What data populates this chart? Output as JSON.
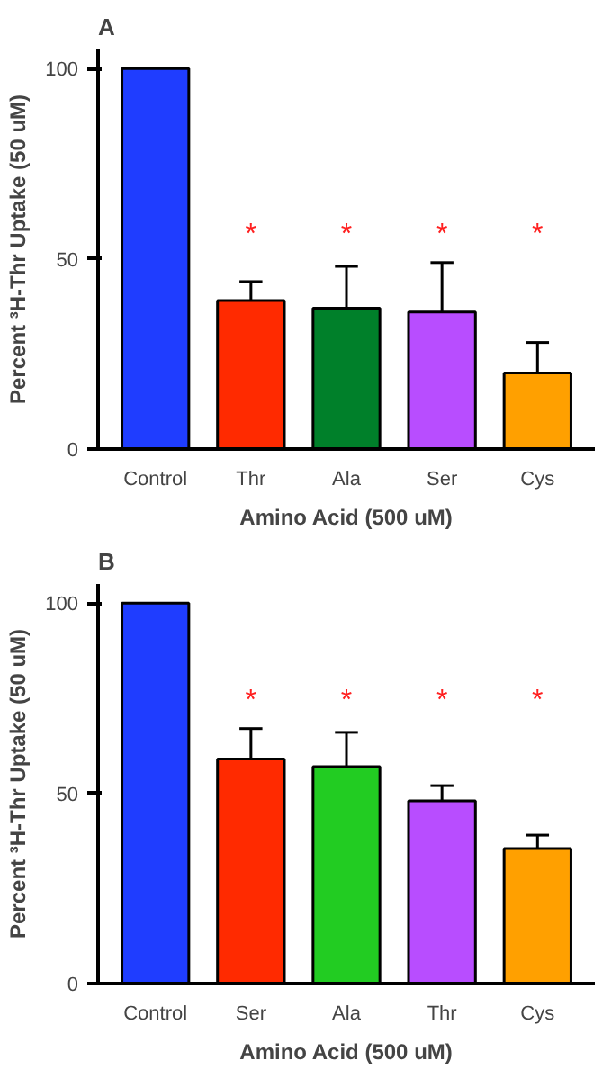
{
  "chart_data": [
    {
      "type": "bar",
      "title": "A",
      "xlabel": "Amino Acid (500 uM)",
      "ylabel": "Percent ³H-Thr Uptake (50 uM)",
      "categories": [
        "Control",
        "Thr",
        "Ala",
        "Ser",
        "Cys"
      ],
      "values": [
        100,
        39,
        37,
        36,
        20
      ],
      "colors": [
        "#1f3dff",
        "#ff2a00",
        "#00802a",
        "#b84dff",
        "#ffa000"
      ],
      "errors": [
        null,
        [
          39,
          44
        ],
        [
          37,
          48
        ],
        [
          36,
          49
        ],
        [
          20,
          28
        ]
      ],
      "ylim": [
        0,
        105
      ],
      "yticks": [
        0,
        50,
        100
      ],
      "grid": false,
      "annotations": [
        "*",
        "*",
        "*",
        "*"
      ]
    },
    {
      "type": "bar",
      "title": "B",
      "xlabel": "Amino Acid (500 uM)",
      "ylabel": "Percent ³H-Thr Uptake (50 uM)",
      "categories": [
        "Control",
        "Ser",
        "Ala",
        "Thr",
        "Cys"
      ],
      "values": [
        100,
        59,
        57,
        48,
        35.5
      ],
      "colors": [
        "#1f3dff",
        "#ff2a00",
        "#22cc22",
        "#b84dff",
        "#ffa000"
      ],
      "errors": [
        null,
        [
          59,
          67
        ],
        [
          57,
          66
        ],
        [
          48,
          52
        ],
        [
          35.5,
          39
        ]
      ],
      "ylim": [
        0,
        105
      ],
      "yticks": [
        0,
        50,
        100
      ],
      "grid": false,
      "annotations": [
        "*",
        "*",
        "*",
        "*"
      ]
    }
  ]
}
